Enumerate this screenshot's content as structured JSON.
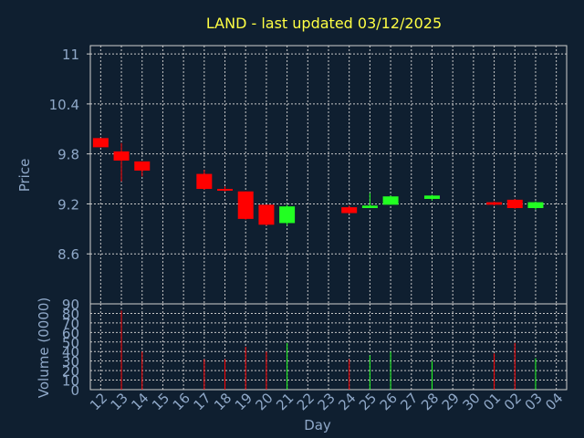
{
  "colors": {
    "background": "#0f1f30",
    "title": "#ffff44",
    "axis_text": "#8fa8c8",
    "grid": "#c8c8c8",
    "frame": "#d0d0d0",
    "up": "#22ff22",
    "down": "#ff0000"
  },
  "chart_data": [
    {
      "type": "candlestick",
      "title": "LAND - last updated 03/12/2025",
      "ylabel": "Price",
      "xlabel": "",
      "ylim": [
        8.0,
        11.1
      ],
      "yticks": [
        "11",
        "10.4",
        "9.8",
        "9.2",
        "8.6"
      ],
      "ytick_values": [
        11.0,
        10.4,
        9.8,
        9.2,
        8.6
      ],
      "grid": true,
      "candles": [
        {
          "day": "12",
          "open": 9.99,
          "high": 9.99,
          "low": 9.88,
          "close": 9.88
        },
        {
          "day": "13",
          "open": 9.83,
          "high": 9.93,
          "low": 9.47,
          "close": 9.72
        },
        {
          "day": "14",
          "open": 9.71,
          "high": 9.71,
          "low": 9.53,
          "close": 9.6
        },
        {
          "day": "17",
          "open": 9.56,
          "high": 9.61,
          "low": 9.37,
          "close": 9.38
        },
        {
          "day": "18",
          "open": 9.38,
          "high": 9.41,
          "low": 9.35,
          "close": 9.37
        },
        {
          "day": "19",
          "open": 9.35,
          "high": 9.35,
          "low": 9.01,
          "close": 9.02
        },
        {
          "day": "20",
          "open": 9.19,
          "high": 9.19,
          "low": 8.94,
          "close": 8.95
        },
        {
          "day": "21",
          "open": 8.97,
          "high": 9.19,
          "low": 8.94,
          "close": 9.17
        },
        {
          "day": "24",
          "open": 9.16,
          "high": 9.18,
          "low": 9.08,
          "close": 9.09
        },
        {
          "day": "25",
          "open": 9.15,
          "high": 9.33,
          "low": 9.15,
          "close": 9.18
        },
        {
          "day": "26",
          "open": 9.19,
          "high": 9.3,
          "low": 9.19,
          "close": 9.29
        },
        {
          "day": "28",
          "open": 9.26,
          "high": 9.31,
          "low": 9.24,
          "close": 9.3
        },
        {
          "day": "01",
          "open": 9.22,
          "high": 9.23,
          "low": 9.18,
          "close": 9.19
        },
        {
          "day": "02",
          "open": 9.25,
          "high": 9.26,
          "low": 9.14,
          "close": 9.15
        },
        {
          "day": "03",
          "open": 9.15,
          "high": 9.23,
          "low": 9.13,
          "close": 9.22
        }
      ]
    },
    {
      "type": "bar",
      "ylabel": "Volume (0000)",
      "xlabel": "Day",
      "ylim": [
        0,
        90
      ],
      "yticks": [
        "90",
        "80",
        "70",
        "60",
        "50",
        "40",
        "30",
        "20",
        "10",
        "0"
      ],
      "ytick_values": [
        90,
        80,
        70,
        60,
        50,
        40,
        30,
        20,
        10,
        0
      ],
      "categories": [
        "12",
        "13",
        "14",
        "15",
        "16",
        "17",
        "18",
        "19",
        "20",
        "21",
        "22",
        "23",
        "24",
        "25",
        "26",
        "27",
        "28",
        "29",
        "30",
        "01",
        "02",
        "03",
        "04"
      ],
      "bars": [
        {
          "day": "13",
          "value": 83,
          "direction": "down"
        },
        {
          "day": "14",
          "value": 40,
          "direction": "down"
        },
        {
          "day": "17",
          "value": 32,
          "direction": "down"
        },
        {
          "day": "18",
          "value": 32,
          "direction": "down"
        },
        {
          "day": "19",
          "value": 45,
          "direction": "down"
        },
        {
          "day": "20",
          "value": 40,
          "direction": "down"
        },
        {
          "day": "21",
          "value": 49,
          "direction": "up"
        },
        {
          "day": "24",
          "value": 32,
          "direction": "down"
        },
        {
          "day": "25",
          "value": 36,
          "direction": "up"
        },
        {
          "day": "26",
          "value": 40,
          "direction": "up"
        },
        {
          "day": "28",
          "value": 30,
          "direction": "up"
        },
        {
          "day": "01",
          "value": 38,
          "direction": "down"
        },
        {
          "day": "02",
          "value": 49,
          "direction": "down"
        },
        {
          "day": "03",
          "value": 33,
          "direction": "up"
        }
      ]
    }
  ]
}
